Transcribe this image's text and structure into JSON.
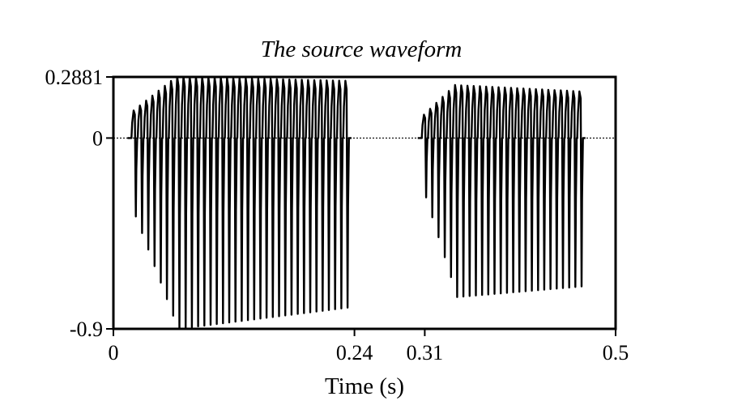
{
  "chart_data": {
    "type": "line",
    "title": "The source waveform",
    "xlabel": "Time (s)",
    "ylabel": "",
    "xlim": [
      0,
      0.5
    ],
    "ylim": [
      -0.9,
      0.2881
    ],
    "x_ticks": [
      0,
      0.24,
      0.31,
      0.5
    ],
    "x_tick_labels": [
      "0",
      "0.24",
      "0.31",
      "0.5"
    ],
    "y_ticks": [
      0.2881,
      0,
      -0.9
    ],
    "y_tick_labels": [
      "0.2881",
      "0",
      "-0.9"
    ],
    "zero_line": "dotted",
    "grid": false,
    "legend": "none",
    "series": [
      {
        "segments": [
          {
            "t_start": 0.018,
            "t_end": 0.235,
            "pulse_count": 35,
            "peak_start": 0.13,
            "peak_max": 0.2881,
            "peak_end": 0.27,
            "trough_start": -0.37,
            "trough_max": -0.9,
            "trough_end": -0.8
          },
          {
            "t_start": 0.307,
            "t_end": 0.468,
            "pulse_count": 26,
            "peak_start": 0.11,
            "peak_max": 0.25,
            "peak_end": 0.22,
            "trough_start": -0.28,
            "trough_max": -0.75,
            "trough_end": -0.7
          }
        ]
      }
    ]
  }
}
